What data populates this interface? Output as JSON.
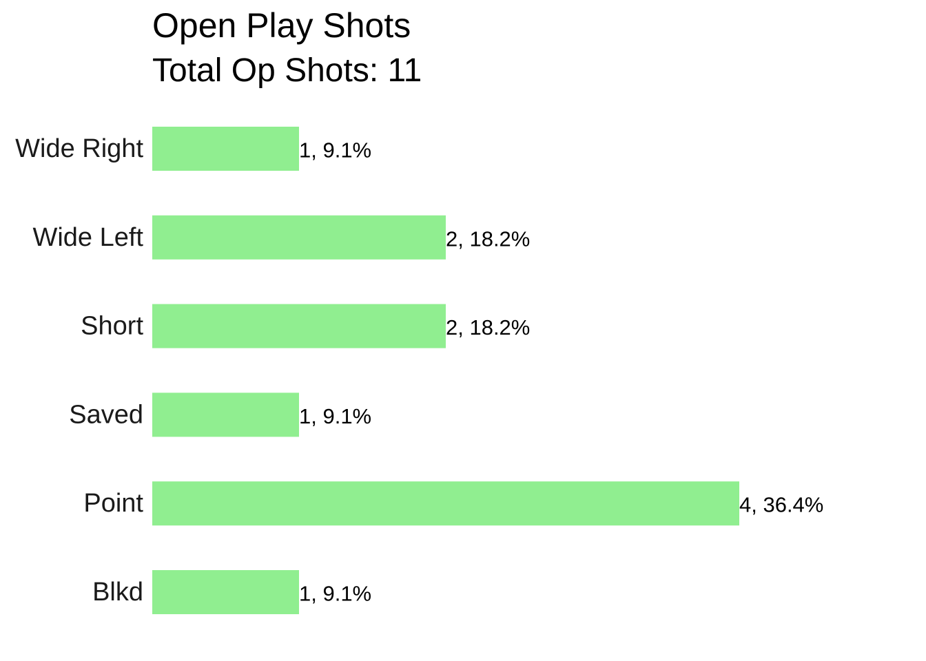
{
  "chart_data": {
    "type": "bar",
    "orientation": "horizontal",
    "title": "Open Play Shots",
    "subtitle": "Total Op Shots: 11",
    "categories": [
      "Wide Right",
      "Wide Left",
      "Short",
      "Saved",
      "Point",
      "Blkd"
    ],
    "values": [
      1,
      2,
      2,
      1,
      4,
      1
    ],
    "percents": [
      9.1,
      18.2,
      18.2,
      9.1,
      36.4,
      9.1
    ],
    "data_labels": [
      "1, 9.1%",
      "2, 18.2%",
      "2, 18.2%",
      "1, 9.1%",
      "4, 36.4%",
      "1, 9.1%"
    ],
    "xlabel": "",
    "ylabel": "",
    "xlim": [
      0,
      4
    ],
    "grid": false,
    "legend": "none",
    "bar_color": "#90ee90"
  }
}
